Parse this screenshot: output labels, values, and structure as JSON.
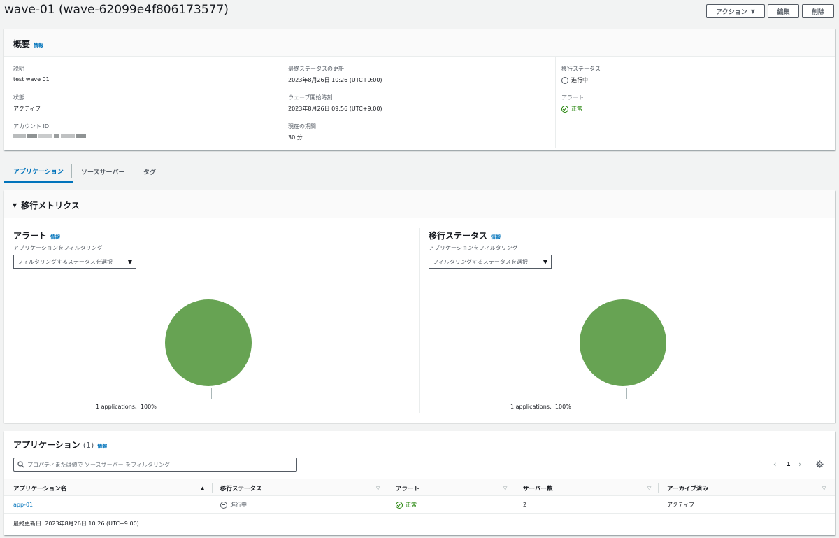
{
  "header": {
    "title": "wave-01 (wave-62099e4f806173577)",
    "actions_label": "アクション",
    "edit_label": "編集",
    "delete_label": "削除"
  },
  "overview": {
    "title": "概要",
    "info": "情報",
    "description_label": "説明",
    "description_value": "test wave 01",
    "state_label": "状態",
    "state_value": "アクティブ",
    "account_label": "アカウント ID",
    "last_status_label": "最終ステータスの更新",
    "last_status_value": "2023年8月26日 10:26 (UTC+9:00)",
    "wave_start_label": "ウェーブ開始時刻",
    "wave_start_value": "2023年8月26日 09:56 (UTC+9:00)",
    "current_period_label": "現在の期間",
    "current_period_value": "30 分",
    "migration_status_label": "移行ステータス",
    "migration_status_value": "進行中",
    "alert_label": "アラート",
    "alert_value": "正常"
  },
  "tabs": [
    {
      "label": "アプリケーション",
      "active": true
    },
    {
      "label": "ソースサーバー",
      "active": false
    },
    {
      "label": "タグ",
      "active": false
    }
  ],
  "metrics": {
    "title": "移行メトリクス",
    "alert_panel": {
      "title": "アラート",
      "info": "情報",
      "filter_label": "アプリケーションをフィルタリング",
      "filter_placeholder": "フィルタリングするステータスを選択",
      "caption": "1 applications、100%"
    },
    "status_panel": {
      "title": "移行ステータス",
      "info": "情報",
      "filter_label": "アプリケーションをフィルタリング",
      "filter_placeholder": "フィルタリングするステータスを選択",
      "caption": "1 applications、100%"
    }
  },
  "chart_data": [
    {
      "type": "pie",
      "categories": [
        ""
      ],
      "values": [
        100
      ],
      "colors": [
        "#67a353"
      ]
    },
    {
      "type": "pie",
      "categories": [
        ""
      ],
      "values": [
        100
      ],
      "colors": [
        "#67a353"
      ]
    }
  ],
  "applications": {
    "title": "アプリケーション",
    "count": "(1)",
    "info": "情報",
    "search_placeholder": "プロパティまたは値で ソースサーバー をフィルタリング",
    "page": "1",
    "columns": [
      "アプリケーション名",
      "移行ステータス",
      "アラート",
      "サーバー数",
      "アーカイブ済み"
    ],
    "rows": [
      {
        "name": "app-01",
        "status": "進行中",
        "alert": "正常",
        "servers": "2",
        "archived": "アクティブ"
      }
    ],
    "footer": "最終更新日: 2023年8月26日 10:26 (UTC+9:00)"
  },
  "colors": {
    "accent": "#0073bb",
    "success": "#1d8102",
    "pie": "#67a353"
  }
}
